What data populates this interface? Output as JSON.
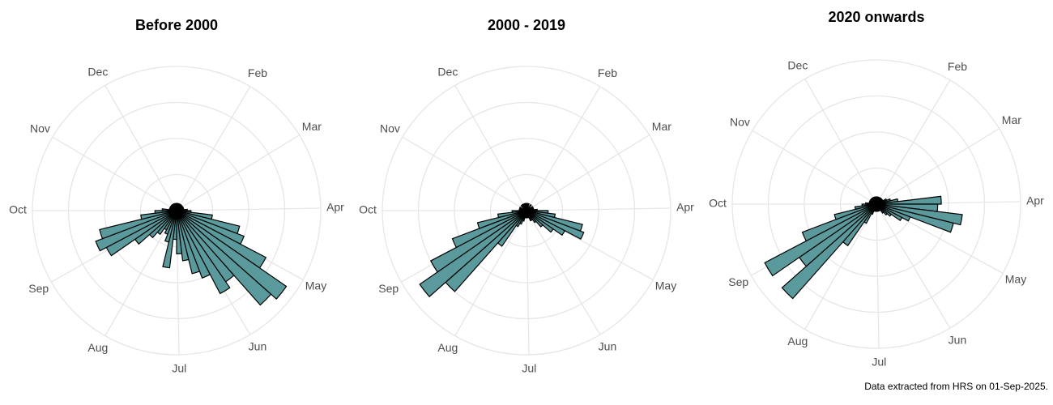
{
  "chart_data": [
    {
      "type": "polar_bar",
      "title": "Before 2000",
      "color": "#5b9a9c",
      "x": [
        1,
        2,
        3,
        4,
        5,
        6,
        7,
        8,
        9,
        10,
        11,
        12,
        13,
        14,
        15,
        16,
        17,
        18,
        19,
        20,
        21,
        22,
        23,
        24,
        25,
        26,
        27,
        28,
        29,
        30,
        31,
        32,
        33,
        34,
        35,
        36,
        37,
        38,
        39,
        40,
        41,
        42,
        43,
        44,
        45,
        46,
        47,
        48,
        49,
        50,
        51,
        52
      ],
      "values": [
        2,
        2,
        1,
        2,
        1,
        2,
        1,
        2,
        1,
        2,
        2,
        2,
        3,
        4,
        10,
        18,
        20,
        28,
        37,
        35,
        24,
        26,
        20,
        18,
        14,
        12,
        8,
        16,
        9,
        7,
        6,
        8,
        10,
        14,
        22,
        24,
        22,
        10,
        6,
        4,
        2,
        2,
        1,
        2,
        1,
        2,
        2,
        1,
        2,
        2,
        1,
        2
      ],
      "xlim": [
        1,
        53
      ],
      "ylim": [
        0,
        40
      ],
      "yticks": [
        10,
        20,
        30,
        40
      ],
      "xticks": [
        {
          "value": 5.43,
          "label": "Feb"
        },
        {
          "value": 9.43,
          "label": "Mar"
        },
        {
          "value": 13.86,
          "label": "Apr"
        },
        {
          "value": 18.14,
          "label": "May"
        },
        {
          "value": 22.57,
          "label": "Jun"
        },
        {
          "value": 26.86,
          "label": "Jul"
        },
        {
          "value": 31.29,
          "label": "Aug"
        },
        {
          "value": 35.71,
          "label": "Sep"
        },
        {
          "value": 40,
          "label": "Oct"
        },
        {
          "value": 44.43,
          "label": "Nov"
        },
        {
          "value": 48.71,
          "label": "Dec"
        }
      ]
    },
    {
      "type": "polar_bar",
      "title": "2000 - 2019",
      "color": "#5b9a9c",
      "x": [
        1,
        2,
        3,
        4,
        5,
        6,
        7,
        8,
        9,
        10,
        11,
        12,
        13,
        14,
        15,
        16,
        17,
        18,
        19,
        20,
        21,
        22,
        23,
        24,
        25,
        26,
        27,
        28,
        29,
        30,
        31,
        32,
        33,
        34,
        35,
        36,
        37,
        38,
        39,
        40,
        41,
        42,
        43,
        44,
        45,
        46,
        47,
        48,
        49,
        50,
        51,
        52
      ],
      "values": [
        2,
        1,
        2,
        1,
        1,
        2,
        1,
        1,
        2,
        1,
        2,
        2,
        3,
        6,
        8,
        16,
        17,
        12,
        9,
        6,
        4,
        3,
        3,
        2,
        2,
        2,
        2,
        2,
        3,
        4,
        5,
        12,
        30,
        36,
        30,
        22,
        14,
        8,
        4,
        2,
        2,
        1,
        2,
        1,
        1,
        2,
        1,
        2,
        1,
        2,
        1,
        2
      ],
      "xlim": [
        1,
        53
      ],
      "ylim": [
        0,
        40
      ],
      "yticks": [
        10,
        20,
        30,
        40
      ],
      "xticks": [
        {
          "value": 5.43,
          "label": "Feb"
        },
        {
          "value": 9.43,
          "label": "Mar"
        },
        {
          "value": 13.86,
          "label": "Apr"
        },
        {
          "value": 18.14,
          "label": "May"
        },
        {
          "value": 22.57,
          "label": "Jun"
        },
        {
          "value": 26.86,
          "label": "Jul"
        },
        {
          "value": 31.29,
          "label": "Aug"
        },
        {
          "value": 35.71,
          "label": "Sep"
        },
        {
          "value": 40,
          "label": "Oct"
        },
        {
          "value": 44.43,
          "label": "Nov"
        },
        {
          "value": 48.71,
          "label": "Dec"
        }
      ]
    },
    {
      "type": "polar_bar",
      "title": "2020 onwards",
      "color": "#5b9a9c",
      "x": [
        1,
        2,
        3,
        4,
        5,
        6,
        7,
        8,
        9,
        10,
        11,
        12,
        13,
        14,
        15,
        16,
        17,
        18,
        19,
        20,
        21,
        22,
        23,
        24,
        25,
        26,
        27,
        28,
        29,
        30,
        31,
        32,
        33,
        34,
        35,
        36,
        37,
        38,
        39,
        40,
        41,
        42,
        43,
        44,
        45,
        46,
        47,
        48,
        49,
        50,
        51,
        52
      ],
      "values": [
        2,
        2,
        2,
        1,
        2,
        2,
        2,
        2,
        2,
        3,
        4,
        6,
        18,
        17,
        24,
        22,
        10,
        8,
        5,
        4,
        3,
        2,
        2,
        2,
        2,
        2,
        2,
        2,
        2,
        3,
        6,
        14,
        35,
        26,
        35,
        22,
        12,
        6,
        4,
        3,
        2,
        2,
        2,
        2,
        2,
        2,
        2,
        2,
        2,
        2,
        2,
        2
      ],
      "xlim": [
        1,
        53
      ],
      "ylim": [
        0,
        40
      ],
      "yticks": [
        10,
        20,
        30,
        40
      ],
      "xticks": [
        {
          "value": 5.43,
          "label": "Feb"
        },
        {
          "value": 9.43,
          "label": "Mar"
        },
        {
          "value": 13.86,
          "label": "Apr"
        },
        {
          "value": 18.14,
          "label": "May"
        },
        {
          "value": 22.57,
          "label": "Jun"
        },
        {
          "value": 26.86,
          "label": "Jul"
        },
        {
          "value": 31.29,
          "label": "Aug"
        },
        {
          "value": 35.71,
          "label": "Sep"
        },
        {
          "value": 40,
          "label": "Oct"
        },
        {
          "value": 44.43,
          "label": "Nov"
        },
        {
          "value": 48.71,
          "label": "Dec"
        }
      ]
    }
  ],
  "caption": "Data extracted from HRS on 01-Sep-2025."
}
